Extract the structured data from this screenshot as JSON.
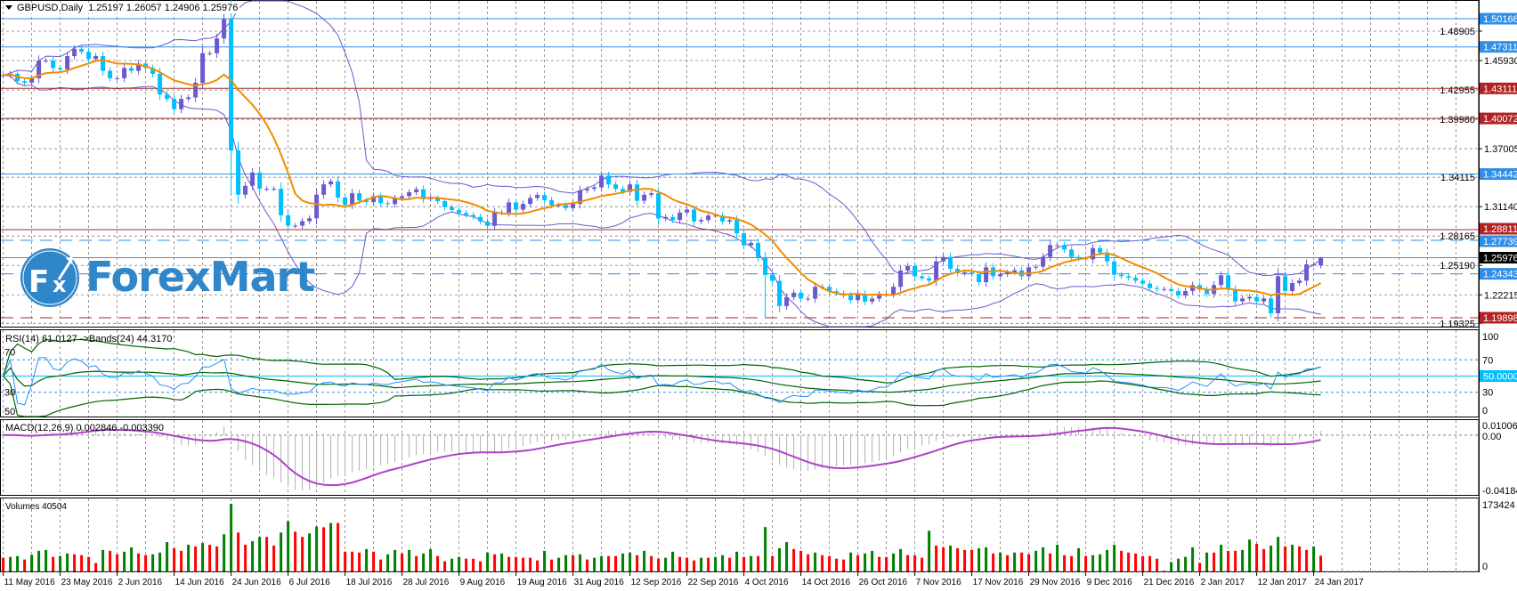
{
  "header": {
    "symbol": "GBPUSD,Daily",
    "ohlc": "1.25197 1.26057 1.24906 1.25976"
  },
  "watermark": {
    "logo_mark": "Fx",
    "logo_text": "ForexMart",
    "color": "#2f86c9"
  },
  "colors": {
    "bull_candle": "#6a5acd",
    "bear_candle": "#00bfff",
    "moving_average": "#f28c00",
    "bollinger": "#6a5acd",
    "support_resistance_blue": "#2f8fe8",
    "support_resistance_red": "#a52a2a",
    "rsi_line": "#1e90ff",
    "rsi_bands": "#006400",
    "macd_histogram": "#b0b0b0",
    "macd_signal": "#b040c8",
    "volume_up": "#008000",
    "volume_down": "#ff0000",
    "grid": "#808080"
  },
  "chart_data": [
    {
      "type": "candlestick",
      "panel": "main",
      "last_bar": {
        "open": 1.25197,
        "high": 1.26057,
        "low": 1.24906,
        "close": 1.25976
      },
      "closes": [
        1.4444,
        1.4459,
        1.4384,
        1.4369,
        1.4414,
        1.4593,
        1.4593,
        1.4518,
        1.4503,
        1.4638,
        1.4712,
        1.4682,
        1.4608,
        1.4638,
        1.4489,
        1.4414,
        1.4414,
        1.4518,
        1.4489,
        1.4563,
        1.4518,
        1.4459,
        1.425,
        1.4205,
        1.4101,
        1.4205,
        1.422,
        1.4369,
        1.4667,
        1.4667,
        1.4817,
        1.5011,
        1.3683,
        1.3235,
        1.3325,
        1.3459,
        1.3295,
        1.3295,
        1.3295,
        1.3026,
        1.2922,
        1.2922,
        1.2967,
        1.2996,
        1.3235,
        1.334,
        1.337,
        1.3205,
        1.3131,
        1.325,
        1.3176,
        1.316,
        1.322,
        1.315,
        1.314,
        1.32,
        1.322,
        1.326,
        1.329,
        1.319,
        1.32,
        1.317,
        1.311,
        1.308,
        1.305,
        1.303,
        1.301,
        1.2964,
        1.292,
        1.3054,
        1.3054,
        1.3157,
        1.3084,
        1.3142,
        1.3202,
        1.3232,
        1.318,
        1.3129,
        1.3129,
        1.3099,
        1.3142,
        1.3279,
        1.3294,
        1.3309,
        1.3429,
        1.3339,
        1.3294,
        1.3264,
        1.3339,
        1.3174,
        1.3234,
        1.3249,
        1.2994,
        1.3009,
        1.2979,
        1.3054,
        1.3084,
        1.2964,
        1.2979,
        1.3024,
        1.3024,
        1.2964,
        1.2979,
        1.2844,
        1.2723,
        1.2747,
        1.2603,
        1.2423,
        1.2363,
        1.2108,
        1.2198,
        1.2243,
        1.2183,
        1.2183,
        1.2303,
        1.2303,
        1.2258,
        1.2237,
        1.2216,
        1.2168,
        1.2228,
        1.2153,
        1.2183,
        1.2228,
        1.2228,
        1.2303,
        1.2468,
        1.2513,
        1.2409,
        1.2389,
        1.2365,
        1.256,
        1.2605,
        1.2485,
        1.244,
        1.2449,
        1.2431,
        1.235,
        1.25,
        1.241,
        1.2431,
        1.2449,
        1.247,
        1.241,
        1.25,
        1.2506,
        1.2605,
        1.2725,
        1.2725,
        1.268,
        1.2605,
        1.259,
        1.2581,
        1.2695,
        1.265,
        1.256,
        1.2425,
        1.241,
        1.2395,
        1.2365,
        1.2335,
        1.229,
        1.228,
        1.228,
        1.226,
        1.2215,
        1.226,
        1.232,
        1.2275,
        1.223,
        1.232,
        1.2419,
        1.2275,
        1.2155,
        1.2185,
        1.22,
        1.2155,
        1.2185,
        1.2035,
        1.241,
        1.226,
        1.2341,
        1.2365,
        1.253,
        1.253,
        1.25976
      ],
      "notable_lows": {
        "32": 1.3235,
        "107": 1.199
      },
      "overlays": [
        "moving-average",
        "bollinger-bands"
      ],
      "price_axis": {
        "range": [
          1.19325,
          1.50166
        ],
        "ticks": [
          "1.48905",
          "1.45930",
          "1.42955",
          "1.39980",
          "1.37005",
          "1.34115",
          "1.31140",
          "1.28165",
          "1.25190",
          "1.22215",
          "1.19325"
        ]
      },
      "levels": [
        {
          "value": "1.50166",
          "color": "blue",
          "style": "solid"
        },
        {
          "value": "1.47311",
          "color": "blue",
          "style": "solid"
        },
        {
          "value": "1.43111",
          "color": "red",
          "style": "solid"
        },
        {
          "value": "1.40072",
          "color": "red",
          "style": "solid"
        },
        {
          "value": "1.34442",
          "color": "blue",
          "style": "solid"
        },
        {
          "value": "1.28811",
          "color": "red",
          "style": "solid"
        },
        {
          "value": "1.27739",
          "color": "blue",
          "style": "dashed"
        },
        {
          "value": "1.24343",
          "color": "blue",
          "style": "dashed"
        },
        {
          "value": "1.19898",
          "color": "red",
          "style": "dashed"
        },
        {
          "value": "1.25976",
          "color": "black",
          "style": "current"
        }
      ],
      "grid": true
    },
    {
      "type": "line",
      "panel": "rsi",
      "label": "RSI(14) 61.0127  ->Bands(24) 44.3170",
      "range": [
        0,
        100
      ],
      "right_ticks": [
        "100",
        "70",
        "30",
        "0"
      ],
      "left_ticks": [
        "70",
        "30",
        "50"
      ],
      "level_label": "50.0000"
    },
    {
      "type": "bar+line",
      "panel": "macd",
      "label": "MACD(12,26,9) 0.002846 -0.003390",
      "range": [
        -0.041849,
        0.01006
      ],
      "right_ticks": [
        "0.01006",
        "0.00",
        "-0.041849"
      ]
    },
    {
      "type": "bar",
      "panel": "volume",
      "label": "Volumes 40504",
      "range": [
        0,
        173424
      ],
      "right_ticks": [
        "173424",
        "0"
      ],
      "values": [
        35000,
        37200,
        39400,
        30500,
        42400,
        52800,
        55100,
        37200,
        39400,
        46100,
        43900,
        41700,
        37200,
        21600,
        55100,
        52800,
        43900,
        50600,
        61800,
        46100,
        41700,
        43900,
        48400,
        75100,
        59500,
        52800,
        68400,
        64000,
        72900,
        68400,
        64000,
        95200,
        173424,
        99700,
        68400,
        77400,
        88500,
        88500,
        66200,
        99700,
        128700,
        101900,
        88500,
        97500,
        115300,
        113100,
        124200,
        124200,
        50600,
        50600,
        48400,
        57300,
        50600,
        30500,
        43900,
        55100,
        46100,
        55100,
        39400,
        46100,
        57300,
        39400,
        26000,
        32700,
        37200,
        32700,
        32700,
        26000,
        48400,
        43900,
        46100,
        37200,
        37200,
        35000,
        35000,
        28300,
        52800,
        30500,
        35000,
        41700,
        41700,
        43900,
        30500,
        35000,
        39400,
        39400,
        39400,
        46100,
        48400,
        41700,
        52800,
        39400,
        32700,
        35000,
        50600,
        37200,
        35000,
        28300,
        35000,
        35000,
        37200,
        41700,
        35000,
        50600,
        37200,
        39400,
        39400,
        113800,
        39400,
        59500,
        75100,
        57300,
        52800,
        43900,
        48400,
        41700,
        39400,
        32700,
        30500,
        48400,
        41700,
        46100,
        52800,
        37200,
        37200,
        46100,
        57300,
        41700,
        41700,
        35000,
        104200,
        66200,
        61800,
        66200,
        59500,
        55100,
        55100,
        59500,
        61800,
        46100,
        48400,
        41700,
        48400,
        48400,
        43900,
        52800,
        61800,
        46100,
        68400,
        41700,
        39400,
        59500,
        39400,
        41700,
        43900,
        55100,
        68400,
        52800,
        48400,
        46100,
        39400,
        39400,
        32700,
        1500,
        23800,
        32700,
        37200,
        61800,
        21600,
        48400,
        48400,
        68400,
        52800,
        52800,
        55100,
        81800,
        70700,
        57300,
        66200,
        88500,
        64000,
        68400,
        64000,
        55100,
        64000,
        40504
      ]
    }
  ],
  "x_axis": {
    "labels": [
      "11 May 2016",
      "23 May 2016",
      "2 Jun 2016",
      "14 Jun 2016",
      "24 Jun 2016",
      "6 Jul 2016",
      "18 Jul 2016",
      "28 Jul 2016",
      "9 Aug 2016",
      "19 Aug 2016",
      "31 Aug 2016",
      "12 Sep 2016",
      "22 Sep 2016",
      "4 Oct 2016",
      "14 Oct 2016",
      "26 Oct 2016",
      "7 Nov 2016",
      "17 Nov 2016",
      "29 Nov 2016",
      "9 Dec 2016",
      "21 Dec 2016",
      "2 Jan 2017",
      "12 Jan 2017",
      "24 Jan 2017"
    ],
    "bars_per_label": 8
  }
}
